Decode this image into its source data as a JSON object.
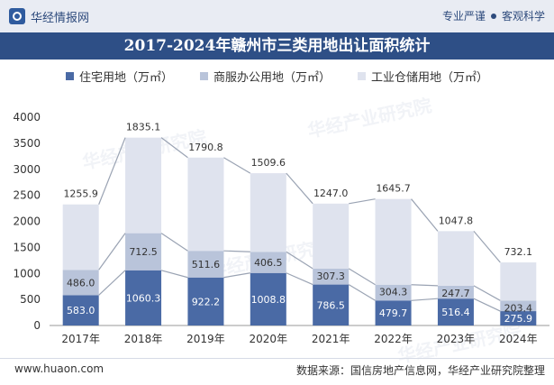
{
  "header": {
    "brand": "华经情报网",
    "slogan_left": "专业严谨",
    "slogan_right": "客观科学"
  },
  "footer": {
    "website": "www.huaon.com",
    "source": "数据来源：国信房地产信息网，华经产业研究院整理"
  },
  "watermark": "华经产业研究院",
  "colors": {
    "residential": "#4a6aa5",
    "commercial": "#b9c4da",
    "industrial": "#dfe3ee",
    "title_bg": "#2e4f86",
    "line": "#9aa3b3"
  },
  "chart_data": {
    "type": "bar",
    "stacked": true,
    "title": "2017-2024年赣州市三类用地出让面积统计",
    "categories": [
      "2017年",
      "2018年",
      "2019年",
      "2020年",
      "2021年",
      "2022年",
      "2023年",
      "2024年"
    ],
    "series": [
      {
        "name": "住宅用地（万㎡）",
        "values": [
          583.0,
          1060.3,
          922.2,
          1008.8,
          786.5,
          479.7,
          516.4,
          275.9
        ]
      },
      {
        "name": "商服办公用地（万㎡）",
        "values": [
          486.0,
          712.5,
          511.6,
          406.5,
          307.3,
          304.3,
          247.7,
          203.4
        ]
      },
      {
        "name": "工业仓储用地（万㎡）",
        "values": [
          1255.9,
          1835.1,
          1790.8,
          1509.6,
          1247.0,
          1645.7,
          1047.8,
          732.1
        ]
      }
    ],
    "ylim": [
      0,
      4000
    ],
    "yticks": [
      0,
      500,
      1000,
      1500,
      2000,
      2500,
      3000,
      3500,
      4000
    ],
    "legend_position": "top-center",
    "grid": false
  }
}
